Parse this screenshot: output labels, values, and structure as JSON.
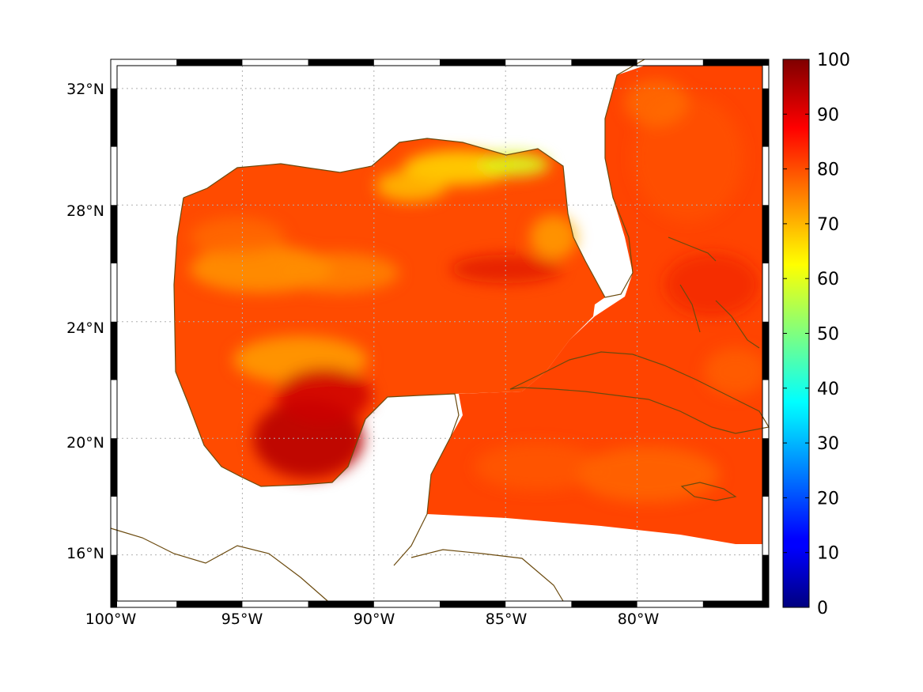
{
  "map": {
    "lon_labels": [
      "100°W",
      "95°W",
      "90°W",
      "85°W",
      "80°W"
    ],
    "lat_labels": [
      "32°N",
      "28°N",
      "24°N",
      "20°N",
      "16°N"
    ],
    "lon_values": [
      -100,
      -95,
      -90,
      -85,
      -80
    ],
    "lat_values": [
      32,
      28,
      24,
      20,
      16
    ],
    "lon_range": [
      -100,
      -75
    ],
    "lat_range": [
      14.2,
      33
    ],
    "grid": true,
    "frame_style": "alternating black/white ticks",
    "coastline_color": "#6b4a0e"
  },
  "colorbar": {
    "colormap": "jet",
    "vmin": 0,
    "vmax": 100,
    "ticks": [
      "0",
      "10",
      "20",
      "30",
      "40",
      "50",
      "60",
      "70",
      "80",
      "90",
      "100"
    ],
    "placement": "right"
  },
  "field": {
    "description_values": "gridded percentage field, mostly 75-95; maximum ~97 in southwest Gulf (Bay of Campeche); minimum ~55-65 off Florida Panhandle / Louisiana coast",
    "dominant_range": [
      72,
      92
    ],
    "min_region_value": 58,
    "max_region_value": 97
  }
}
